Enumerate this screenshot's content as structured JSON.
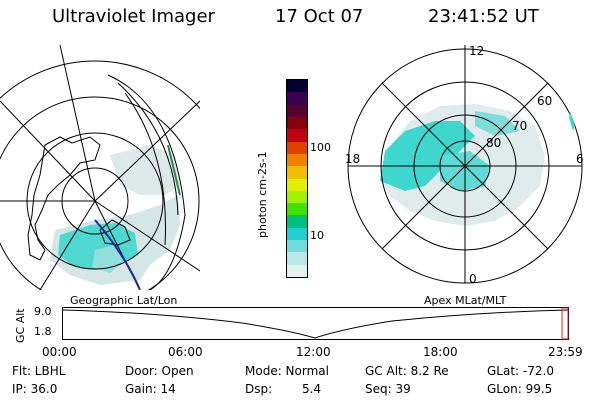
{
  "header": {
    "title": "Ultraviolet Imager",
    "date": "17 Oct 07",
    "time": "23:41:52 UT"
  },
  "colorbar": {
    "unit_label": "photon cm-2s-1",
    "ticks": [
      "100",
      "10"
    ],
    "colors": [
      "#000033",
      "#3a0050",
      "#5a0030",
      "#880010",
      "#c00010",
      "#e04000",
      "#f08000",
      "#f0c000",
      "#e0f000",
      "#a0f000",
      "#40e000",
      "#00c080",
      "#20d0d0",
      "#70dcdc",
      "#b8e8e8",
      "#e6f0f0"
    ]
  },
  "left_map": {
    "projection_label": "Geographic Lat/Lon"
  },
  "right_map": {
    "projection_label": "Apex MLat/MLT",
    "mlt_labels": [
      "12",
      "18",
      "6",
      "0"
    ],
    "lat_labels": [
      "60",
      "70",
      "80"
    ]
  },
  "timeline": {
    "y_label": "GC Alt",
    "y_ticks": [
      "9.0",
      "1.8"
    ],
    "x_ticks": [
      "00:00",
      "06:00",
      "12:00",
      "18:00",
      "23:59"
    ]
  },
  "info": {
    "filter": "Flt: LBHL",
    "ip": "IP: 36.0",
    "door": "Door: Open",
    "gain": "Gain: 14",
    "mode": "Mode: Normal",
    "dsp": "Dsp:",
    "dsp_value": "5.4",
    "gc_alt": "GC Alt: 8.2 Re",
    "seq": "Seq: 39",
    "glat": "GLat: -72.0",
    "glon": "GLon: 99.5"
  }
}
